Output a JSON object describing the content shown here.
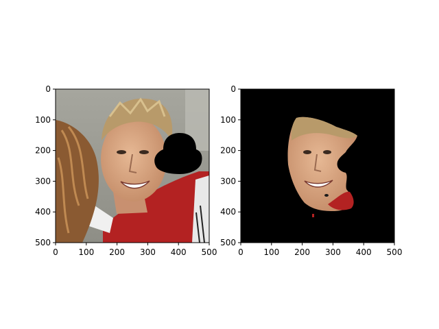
{
  "figure": {
    "background": "#ffffff",
    "axes_color": "#000000"
  },
  "chart_data": [
    {
      "type": "image",
      "content": "photo of smiling man with short light-brown hair hugging a person with curly brown hair; red and white shirt; black bowler-hat shaped occlusion on right of face",
      "xlabel": "",
      "ylabel": "",
      "xlim": [
        0,
        500
      ],
      "ylim": [
        500,
        0
      ],
      "xticks": [
        0,
        100,
        200,
        300,
        400,
        500
      ],
      "yticks": [
        0,
        100,
        200,
        300,
        400,
        500
      ],
      "tick_labels_x": [
        "0",
        "100",
        "200",
        "300",
        "400",
        "500"
      ],
      "tick_labels_y": [
        "0",
        "100",
        "200",
        "300",
        "400",
        "500"
      ],
      "grid": false,
      "colors": {
        "background": "#9c9c94",
        "hair": "#b89a6a",
        "skin": "#d9a884",
        "shirt": "#b32222",
        "occluder": "#000000",
        "hugger_hair": "#8a5a32"
      }
    },
    {
      "type": "image",
      "content": "segmentation mask output: face region of the same man on black background with hole where the hat occluder was and a small red shirt patch",
      "xlabel": "",
      "ylabel": "",
      "xlim": [
        0,
        500
      ],
      "ylim": [
        500,
        0
      ],
      "xticks": [
        0,
        100,
        200,
        300,
        400,
        500
      ],
      "yticks": [
        0,
        100,
        200,
        300,
        400,
        500
      ],
      "tick_labels_x": [
        "0",
        "100",
        "200",
        "300",
        "400",
        "500"
      ],
      "tick_labels_y": [
        "0",
        "100",
        "200",
        "300",
        "400",
        "500"
      ],
      "grid": false,
      "colors": {
        "background": "#000000",
        "skin": "#d9a884",
        "shirt": "#b32222"
      }
    }
  ]
}
